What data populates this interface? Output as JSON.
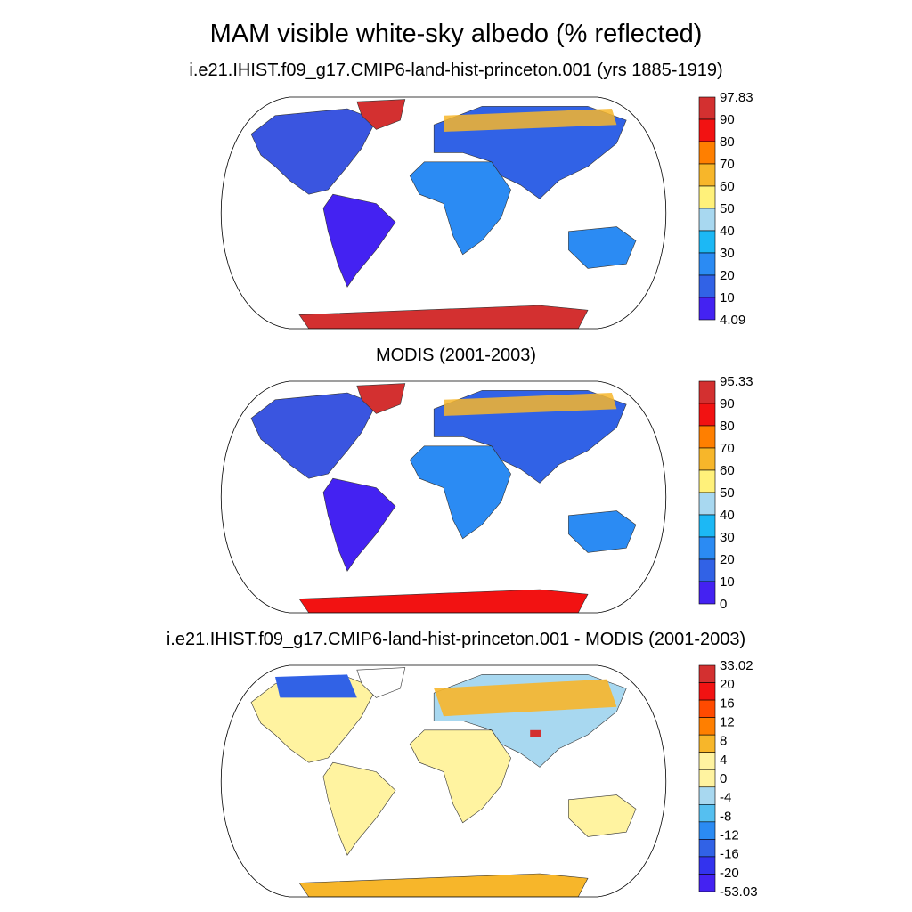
{
  "figure": {
    "title": "MAM visible white-sky albedo (% reflected)"
  },
  "panels": [
    {
      "title": "i.e21.IHIST.f09_g17.CMIP6-land-hist-princeton.001 (yrs 1885-1919)",
      "colorbar": {
        "labels": [
          "97.83",
          "90",
          "80",
          "70",
          "60",
          "50",
          "40",
          "30",
          "20",
          "10",
          "4.09"
        ],
        "colors": [
          "#d33030",
          "#f21212",
          "#ff7f00",
          "#f7b62a",
          "#fff17a",
          "#a8d8f0",
          "#1cb8f5",
          "#2b8bf3",
          "#3162e6",
          "#4422f2"
        ]
      }
    },
    {
      "title": "MODIS (2001-2003)",
      "colorbar": {
        "labels": [
          "95.33",
          "90",
          "80",
          "70",
          "60",
          "50",
          "40",
          "30",
          "20",
          "10",
          "0"
        ],
        "colors": [
          "#d33030",
          "#f21212",
          "#ff7f00",
          "#f7b62a",
          "#fff17a",
          "#a8d8f0",
          "#1cb8f5",
          "#2b8bf3",
          "#3162e6",
          "#4422f2"
        ]
      }
    },
    {
      "title": "i.e21.IHIST.f09_g17.CMIP6-land-hist-princeton.001 - MODIS (2001-2003)",
      "colorbar": {
        "labels": [
          "33.02",
          "20",
          "16",
          "12",
          "8",
          "4",
          "0",
          "-4",
          "-8",
          "-12",
          "-16",
          "-20",
          "-53.03"
        ],
        "colors": [
          "#d33030",
          "#f21212",
          "#ff4a00",
          "#ff7f00",
          "#f7b62a",
          "#fff3a0",
          "#fff3a0",
          "#a8d8f0",
          "#55bff0",
          "#2b8bf3",
          "#3162e6",
          "#3333ee",
          "#4422f2"
        ]
      }
    }
  ],
  "map": {
    "projection": "Robinson",
    "land_colors": {
      "north_america": "#3a55e0",
      "south_america": "#4422f2",
      "africa": "#2b8bf3",
      "eurasia": "#3162e6",
      "australia": "#2b8bf3",
      "greenland": "#d33030",
      "antarctica": "#d33030",
      "arctic_snow": "#f21212",
      "diff_land": "#fff3a0",
      "diff_high": "#f7b62a",
      "diff_low": "#3162e6"
    }
  }
}
